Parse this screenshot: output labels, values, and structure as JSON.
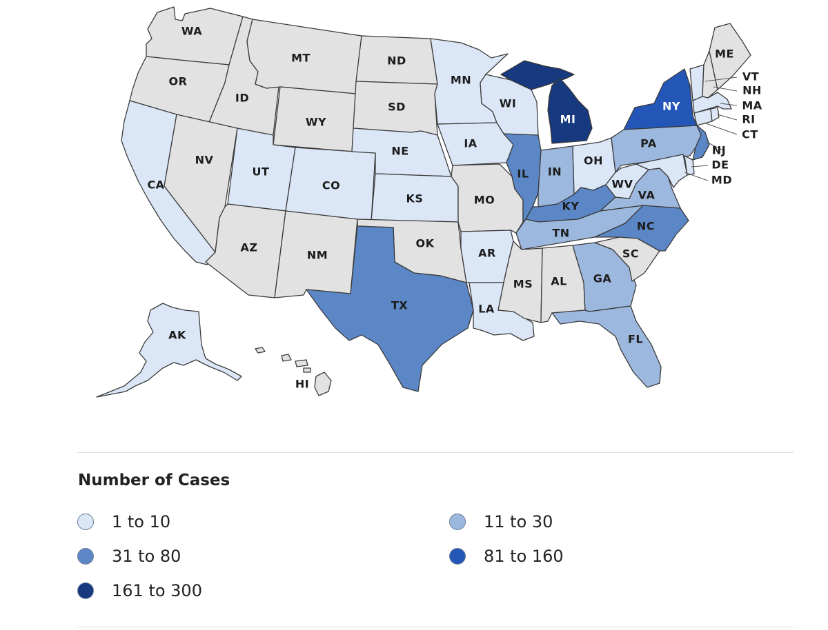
{
  "colors": {
    "none": "#e2e2e2",
    "bin1": "#dbe7f7",
    "bin2": "#9db8de",
    "bin3": "#5b87c6",
    "bin4": "#2456b8",
    "bin5": "#17397f"
  },
  "states": [
    {
      "abbr": "WA",
      "bin": "none"
    },
    {
      "abbr": "OR",
      "bin": "none"
    },
    {
      "abbr": "CA",
      "bin": "bin1"
    },
    {
      "abbr": "ID",
      "bin": "none"
    },
    {
      "abbr": "NV",
      "bin": "none"
    },
    {
      "abbr": "MT",
      "bin": "none"
    },
    {
      "abbr": "WY",
      "bin": "none"
    },
    {
      "abbr": "UT",
      "bin": "bin1"
    },
    {
      "abbr": "AZ",
      "bin": "none"
    },
    {
      "abbr": "CO",
      "bin": "bin1"
    },
    {
      "abbr": "NM",
      "bin": "none"
    },
    {
      "abbr": "ND",
      "bin": "none"
    },
    {
      "abbr": "SD",
      "bin": "none"
    },
    {
      "abbr": "NE",
      "bin": "bin1"
    },
    {
      "abbr": "KS",
      "bin": "bin1"
    },
    {
      "abbr": "OK",
      "bin": "none"
    },
    {
      "abbr": "TX",
      "bin": "bin3"
    },
    {
      "abbr": "MN",
      "bin": "bin1"
    },
    {
      "abbr": "IA",
      "bin": "bin1"
    },
    {
      "abbr": "MO",
      "bin": "none"
    },
    {
      "abbr": "AR",
      "bin": "bin1"
    },
    {
      "abbr": "LA",
      "bin": "bin1"
    },
    {
      "abbr": "WI",
      "bin": "bin1"
    },
    {
      "abbr": "IL",
      "bin": "bin3"
    },
    {
      "abbr": "MI",
      "bin": "bin5"
    },
    {
      "abbr": "IN",
      "bin": "bin2"
    },
    {
      "abbr": "OH",
      "bin": "bin1"
    },
    {
      "abbr": "KY",
      "bin": "bin3"
    },
    {
      "abbr": "TN",
      "bin": "bin2"
    },
    {
      "abbr": "MS",
      "bin": "none"
    },
    {
      "abbr": "AL",
      "bin": "none"
    },
    {
      "abbr": "GA",
      "bin": "bin2"
    },
    {
      "abbr": "FL",
      "bin": "bin2"
    },
    {
      "abbr": "SC",
      "bin": "none"
    },
    {
      "abbr": "NC",
      "bin": "bin3"
    },
    {
      "abbr": "VA",
      "bin": "bin2"
    },
    {
      "abbr": "WV",
      "bin": "bin1"
    },
    {
      "abbr": "PA",
      "bin": "bin2"
    },
    {
      "abbr": "NY",
      "bin": "bin4"
    },
    {
      "abbr": "ME",
      "bin": "none"
    },
    {
      "abbr": "VT",
      "bin": "bin1"
    },
    {
      "abbr": "NH",
      "bin": "none"
    },
    {
      "abbr": "MA",
      "bin": "bin1"
    },
    {
      "abbr": "RI",
      "bin": "bin1"
    },
    {
      "abbr": "CT",
      "bin": "bin1"
    },
    {
      "abbr": "NJ",
      "bin": "bin3"
    },
    {
      "abbr": "DE",
      "bin": "bin1"
    },
    {
      "abbr": "MD",
      "bin": "bin1"
    },
    {
      "abbr": "AK",
      "bin": "bin1"
    },
    {
      "abbr": "HI",
      "bin": "none"
    }
  ],
  "legend": {
    "title": "Number of Cases",
    "items": [
      {
        "label": "1 to 10",
        "bin": "bin1"
      },
      {
        "label": "11 to 30",
        "bin": "bin2"
      },
      {
        "label": "31 to 80",
        "bin": "bin3"
      },
      {
        "label": "81 to 160",
        "bin": "bin4"
      },
      {
        "label": "161 to 300",
        "bin": "bin5"
      }
    ]
  }
}
